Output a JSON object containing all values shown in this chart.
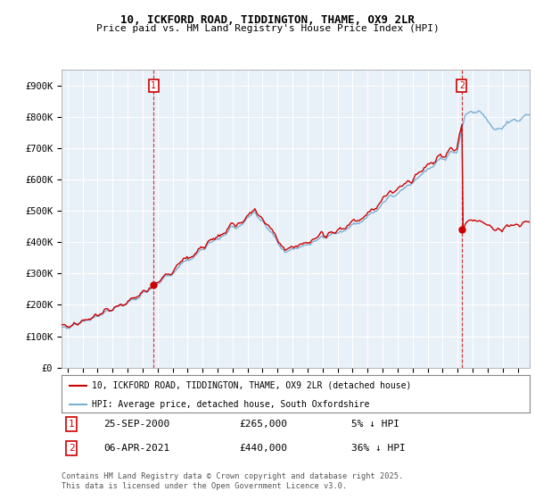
{
  "title_line1": "10, ICKFORD ROAD, TIDDINGTON, THAME, OX9 2LR",
  "title_line2": "Price paid vs. HM Land Registry's House Price Index (HPI)",
  "legend_label_red": "10, ICKFORD ROAD, TIDDINGTON, THAME, OX9 2LR (detached house)",
  "legend_label_blue": "HPI: Average price, detached house, South Oxfordshire",
  "annotation1_date": "25-SEP-2000",
  "annotation1_price": "£265,000",
  "annotation1_hpi": "5% ↓ HPI",
  "annotation2_date": "06-APR-2021",
  "annotation2_price": "£440,000",
  "annotation2_hpi": "36% ↓ HPI",
  "footnote": "Contains HM Land Registry data © Crown copyright and database right 2025.\nThis data is licensed under the Open Government Licence v3.0.",
  "red_color": "#cc0000",
  "blue_color": "#7ab0d4",
  "chart_bg": "#e8f0f8",
  "grid_color": "#ffffff",
  "background_color": "#ffffff",
  "ylim": [
    0,
    950000
  ],
  "yticks": [
    0,
    100000,
    200000,
    300000,
    400000,
    500000,
    600000,
    700000,
    800000,
    900000
  ],
  "ytick_labels": [
    "£0",
    "£100K",
    "£200K",
    "£300K",
    "£400K",
    "£500K",
    "£600K",
    "£700K",
    "£800K",
    "£900K"
  ],
  "xlim_start": 1994.6,
  "xlim_end": 2025.8,
  "sale1_x": 2000.73,
  "sale1_y": 265000,
  "sale2_x": 2021.27,
  "sale2_y": 440000
}
